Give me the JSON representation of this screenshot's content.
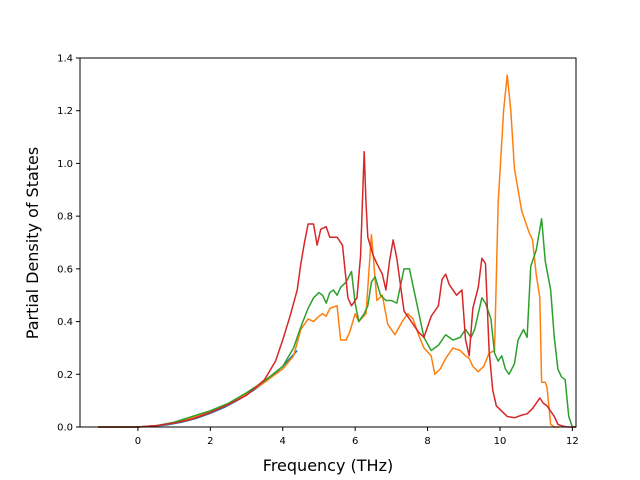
{
  "chart_data": {
    "type": "line",
    "title": "",
    "xlabel": "Frequency (THz)",
    "ylabel": "Partial Density of States",
    "xlim": [
      -1.6,
      12.1
    ],
    "ylim": [
      0,
      1.4
    ],
    "xticks": [
      0,
      2,
      4,
      6,
      8,
      10,
      12
    ],
    "yticks": [
      0.0,
      0.2,
      0.4,
      0.6,
      0.8,
      1.0,
      1.2,
      1.4
    ],
    "grid": false,
    "legend": "none",
    "series": [
      {
        "color": "#1f77b4",
        "points": [
          [
            -1.1,
            0
          ],
          [
            0,
            0
          ],
          [
            0.4,
            0.003
          ],
          [
            0.8,
            0.008
          ],
          [
            1.2,
            0.018
          ],
          [
            1.6,
            0.032
          ],
          [
            2.0,
            0.052
          ],
          [
            2.4,
            0.075
          ],
          [
            2.8,
            0.105
          ],
          [
            3.2,
            0.14
          ],
          [
            3.6,
            0.18
          ],
          [
            4.0,
            0.23
          ],
          [
            4.4,
            0.29
          ]
        ]
      },
      {
        "color": "#ff7f0e",
        "points": [
          [
            -1.1,
            0
          ],
          [
            0,
            0
          ],
          [
            0.5,
            0.005
          ],
          [
            1.0,
            0.015
          ],
          [
            1.5,
            0.035
          ],
          [
            2.0,
            0.058
          ],
          [
            2.5,
            0.085
          ],
          [
            3.0,
            0.125
          ],
          [
            3.5,
            0.17
          ],
          [
            4.0,
            0.22
          ],
          [
            4.3,
            0.27
          ],
          [
            4.5,
            0.37
          ],
          [
            4.7,
            0.41
          ],
          [
            4.85,
            0.4
          ],
          [
            5.0,
            0.42
          ],
          [
            5.1,
            0.43
          ],
          [
            5.2,
            0.42
          ],
          [
            5.3,
            0.45
          ],
          [
            5.5,
            0.46
          ],
          [
            5.6,
            0.33
          ],
          [
            5.75,
            0.33
          ],
          [
            5.85,
            0.36
          ],
          [
            6.0,
            0.43
          ],
          [
            6.1,
            0.4
          ],
          [
            6.3,
            0.43
          ],
          [
            6.45,
            0.73
          ],
          [
            6.6,
            0.48
          ],
          [
            6.75,
            0.5
          ],
          [
            6.9,
            0.39
          ],
          [
            7.1,
            0.35
          ],
          [
            7.3,
            0.4
          ],
          [
            7.45,
            0.43
          ],
          [
            7.6,
            0.41
          ],
          [
            7.75,
            0.35
          ],
          [
            7.9,
            0.3
          ],
          [
            8.1,
            0.27
          ],
          [
            8.2,
            0.2
          ],
          [
            8.35,
            0.22
          ],
          [
            8.5,
            0.26
          ],
          [
            8.7,
            0.3
          ],
          [
            8.9,
            0.29
          ],
          [
            9.05,
            0.27
          ],
          [
            9.15,
            0.26
          ],
          [
            9.25,
            0.23
          ],
          [
            9.4,
            0.21
          ],
          [
            9.55,
            0.23
          ],
          [
            9.7,
            0.28
          ],
          [
            9.85,
            0.29
          ],
          [
            9.95,
            0.85
          ],
          [
            10.1,
            1.2
          ],
          [
            10.2,
            1.335
          ],
          [
            10.3,
            1.2
          ],
          [
            10.4,
            0.98
          ],
          [
            10.6,
            0.82
          ],
          [
            10.8,
            0.74
          ],
          [
            10.9,
            0.71
          ],
          [
            11.0,
            0.58
          ],
          [
            11.1,
            0.49
          ],
          [
            11.15,
            0.17
          ],
          [
            11.25,
            0.17
          ],
          [
            11.3,
            0.15
          ],
          [
            11.4,
            0.01
          ],
          [
            11.5,
            0
          ],
          [
            11.65,
            0
          ]
        ]
      },
      {
        "color": "#2ca02c",
        "points": [
          [
            -1.1,
            0
          ],
          [
            0,
            0
          ],
          [
            0.5,
            0.005
          ],
          [
            1.0,
            0.018
          ],
          [
            1.5,
            0.04
          ],
          [
            2.0,
            0.062
          ],
          [
            2.5,
            0.09
          ],
          [
            3.0,
            0.13
          ],
          [
            3.5,
            0.175
          ],
          [
            4.0,
            0.23
          ],
          [
            4.3,
            0.3
          ],
          [
            4.5,
            0.38
          ],
          [
            4.7,
            0.45
          ],
          [
            4.85,
            0.49
          ],
          [
            5.0,
            0.51
          ],
          [
            5.1,
            0.5
          ],
          [
            5.2,
            0.47
          ],
          [
            5.3,
            0.51
          ],
          [
            5.4,
            0.52
          ],
          [
            5.5,
            0.5
          ],
          [
            5.6,
            0.53
          ],
          [
            5.75,
            0.55
          ],
          [
            5.9,
            0.59
          ],
          [
            6.0,
            0.47
          ],
          [
            6.1,
            0.4
          ],
          [
            6.25,
            0.43
          ],
          [
            6.35,
            0.46
          ],
          [
            6.45,
            0.55
          ],
          [
            6.55,
            0.57
          ],
          [
            6.7,
            0.5
          ],
          [
            6.85,
            0.48
          ],
          [
            7.0,
            0.48
          ],
          [
            7.15,
            0.47
          ],
          [
            7.35,
            0.6
          ],
          [
            7.5,
            0.6
          ],
          [
            7.7,
            0.47
          ],
          [
            7.9,
            0.34
          ],
          [
            8.1,
            0.29
          ],
          [
            8.3,
            0.31
          ],
          [
            8.5,
            0.35
          ],
          [
            8.7,
            0.33
          ],
          [
            8.9,
            0.34
          ],
          [
            9.05,
            0.37
          ],
          [
            9.2,
            0.34
          ],
          [
            9.3,
            0.37
          ],
          [
            9.5,
            0.49
          ],
          [
            9.6,
            0.47
          ],
          [
            9.75,
            0.41
          ],
          [
            9.85,
            0.28
          ],
          [
            9.95,
            0.25
          ],
          [
            10.05,
            0.27
          ],
          [
            10.15,
            0.22
          ],
          [
            10.25,
            0.2
          ],
          [
            10.4,
            0.24
          ],
          [
            10.5,
            0.33
          ],
          [
            10.65,
            0.37
          ],
          [
            10.75,
            0.34
          ],
          [
            10.85,
            0.61
          ],
          [
            11.0,
            0.67
          ],
          [
            11.15,
            0.79
          ],
          [
            11.25,
            0.63
          ],
          [
            11.4,
            0.52
          ],
          [
            11.5,
            0.34
          ],
          [
            11.6,
            0.22
          ],
          [
            11.7,
            0.19
          ],
          [
            11.8,
            0.18
          ],
          [
            11.9,
            0.04
          ],
          [
            12.0,
            0
          ],
          [
            12.1,
            0
          ]
        ]
      },
      {
        "color": "#d62728",
        "points": [
          [
            -1.1,
            0
          ],
          [
            0,
            0
          ],
          [
            0.5,
            0.005
          ],
          [
            1.0,
            0.015
          ],
          [
            1.5,
            0.03
          ],
          [
            2.0,
            0.055
          ],
          [
            2.5,
            0.085
          ],
          [
            3.0,
            0.12
          ],
          [
            3.5,
            0.18
          ],
          [
            3.8,
            0.25
          ],
          [
            4.0,
            0.33
          ],
          [
            4.2,
            0.42
          ],
          [
            4.4,
            0.52
          ],
          [
            4.5,
            0.62
          ],
          [
            4.6,
            0.7
          ],
          [
            4.7,
            0.77
          ],
          [
            4.85,
            0.77
          ],
          [
            4.95,
            0.69
          ],
          [
            5.05,
            0.75
          ],
          [
            5.2,
            0.76
          ],
          [
            5.3,
            0.72
          ],
          [
            5.5,
            0.72
          ],
          [
            5.65,
            0.69
          ],
          [
            5.8,
            0.49
          ],
          [
            5.9,
            0.46
          ],
          [
            6.05,
            0.49
          ],
          [
            6.15,
            0.65
          ],
          [
            6.2,
            0.85
          ],
          [
            6.25,
            1.045
          ],
          [
            6.3,
            0.85
          ],
          [
            6.35,
            0.72
          ],
          [
            6.5,
            0.65
          ],
          [
            6.6,
            0.62
          ],
          [
            6.75,
            0.58
          ],
          [
            6.85,
            0.52
          ],
          [
            6.95,
            0.63
          ],
          [
            7.05,
            0.71
          ],
          [
            7.15,
            0.64
          ],
          [
            7.35,
            0.44
          ],
          [
            7.55,
            0.4
          ],
          [
            7.75,
            0.36
          ],
          [
            7.9,
            0.34
          ],
          [
            8.1,
            0.42
          ],
          [
            8.3,
            0.46
          ],
          [
            8.4,
            0.56
          ],
          [
            8.5,
            0.58
          ],
          [
            8.6,
            0.54
          ],
          [
            8.8,
            0.5
          ],
          [
            8.95,
            0.52
          ],
          [
            9.05,
            0.33
          ],
          [
            9.15,
            0.27
          ],
          [
            9.25,
            0.45
          ],
          [
            9.4,
            0.53
          ],
          [
            9.5,
            0.64
          ],
          [
            9.6,
            0.62
          ],
          [
            9.7,
            0.29
          ],
          [
            9.8,
            0.14
          ],
          [
            9.9,
            0.08
          ],
          [
            10.05,
            0.06
          ],
          [
            10.2,
            0.04
          ],
          [
            10.4,
            0.035
          ],
          [
            10.6,
            0.045
          ],
          [
            10.75,
            0.05
          ],
          [
            10.9,
            0.07
          ],
          [
            11.0,
            0.09
          ],
          [
            11.1,
            0.11
          ],
          [
            11.2,
            0.09
          ],
          [
            11.3,
            0.08
          ],
          [
            11.4,
            0.06
          ],
          [
            11.5,
            0.04
          ],
          [
            11.6,
            0.01
          ],
          [
            11.7,
            0.005
          ],
          [
            11.85,
            0
          ],
          [
            12.1,
            0
          ]
        ]
      }
    ]
  }
}
